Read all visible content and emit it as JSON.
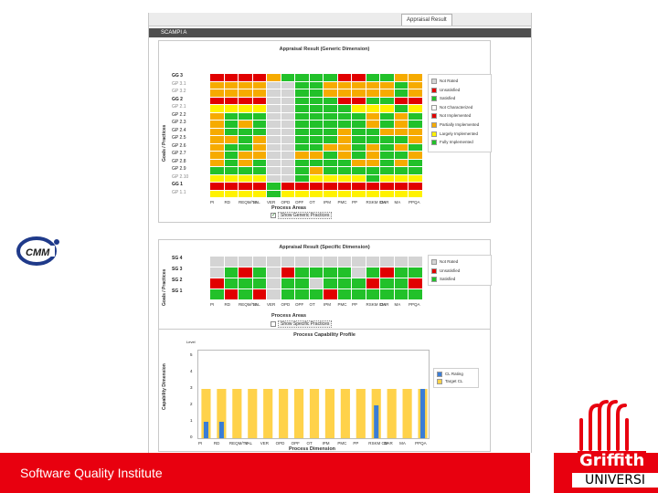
{
  "window": {
    "tab_label": "Appraisal Result",
    "title": "SCAMPI A"
  },
  "colors": {
    "red": "#e10000",
    "green": "#22c12a",
    "orange": "#f6ab00",
    "yellow": "#fff200",
    "grey": "#d4d4d4",
    "bar_blue": "#3a7dd6",
    "bar_gold": "#ffd24a",
    "brand_red": "#e8000f"
  },
  "generic_panel": {
    "title": "Appraisal Result (Generic Dimension)",
    "y_axis": "Goals / Practices",
    "x_title": "Process Areas",
    "checkbox_label": "Show Generic Practices",
    "checkbox_checked": true,
    "rows": [
      {
        "label": "GG 3",
        "style": "main"
      },
      {
        "label": "GP 3.1",
        "style": "grey"
      },
      {
        "label": "GP 3.2",
        "style": "grey"
      },
      {
        "label": "GG 2",
        "style": "main"
      },
      {
        "label": "GP 2.1",
        "style": "grey"
      },
      {
        "label": "GP 2.2",
        "style": "normal"
      },
      {
        "label": "GP 2.3",
        "style": "normal"
      },
      {
        "label": "GP 2.4",
        "style": "normal"
      },
      {
        "label": "GP 2.5",
        "style": "normal"
      },
      {
        "label": "GP 2.6",
        "style": "normal"
      },
      {
        "label": "GP 2.7",
        "style": "normal"
      },
      {
        "label": "GP 2.8",
        "style": "normal"
      },
      {
        "label": "GP 2.9",
        "style": "normal"
      },
      {
        "label": "GP 2.10",
        "style": "grey"
      },
      {
        "label": "GG 1",
        "style": "main"
      },
      {
        "label": "GP 1.1",
        "style": "grey"
      }
    ],
    "columns": [
      "PI",
      "RD",
      "REQM/TS",
      "VAL",
      "VER",
      "OPD",
      "OPF",
      "OT",
      "IPM",
      "PMC",
      "PP",
      "RSKM CM",
      "DAR",
      "MA",
      "PPQA"
    ],
    "grid": [
      "RRRROGGGGRRGGOO",
      "OOOOGGGGOOOOOGO",
      "OOOOGGGGOOOOOGO",
      "RRRRGGGGGRRGGRR",
      "YYYYGGGGGGYYYGY",
      "OGGGGGGGGGGOGOG",
      "OGOGGGGGGGGOGOG",
      "OGGGGGGGGOGGOOO",
      "OOGOGGGGGOGGGGO",
      "OGGOGGGGOOGOGOG",
      "OGOOGGOOGOGOGGO",
      "OGOGGGGGGGOOGOG",
      "GGGGGGGOGGGGGGG",
      "YYYYGGGYYYYGYYY",
      "RRRRGRRRRRRRRRR",
      "YYYYGYYYYYYYYYY"
    ],
    "grey_cols": [
      4,
      5
    ],
    "legend": [
      {
        "label": "Not Rated",
        "color": "#d4d4d4"
      },
      {
        "label": "Unsatisfied",
        "color": "#e10000"
      },
      {
        "label": "Satisfied",
        "color": "#22c12a"
      },
      {
        "label": "Not Characterized",
        "color": "#ffffff"
      },
      {
        "label": "Not Implemented",
        "color": "#e10000"
      },
      {
        "label": "Partially Implemented",
        "color": "#f6ab00"
      },
      {
        "label": "Largely Implemented",
        "color": "#fff200"
      },
      {
        "label": "Fully Implemented",
        "color": "#22c12a"
      }
    ]
  },
  "specific_panel": {
    "title": "Appraisal Result (Specific Dimension)",
    "y_axis": "Goals / Practices",
    "x_title": "Process Areas",
    "checkbox_label": "Show Specific Practices",
    "checkbox_checked": false,
    "rows": [
      {
        "label": "SG 4",
        "style": "main"
      },
      {
        "label": "SG 3",
        "style": "main"
      },
      {
        "label": "SG 2",
        "style": "main"
      },
      {
        "label": "SG 1",
        "style": "main"
      }
    ],
    "columns": [
      "PI",
      "RD",
      "REQM/TS",
      "VAL",
      "VER",
      "OPD",
      "OPF",
      "OT",
      "IPM",
      "PMC",
      "PP",
      "RSKM CM",
      "DAR",
      "MA",
      "PPQA"
    ],
    "grid": [
      "NNNNNNNNNNNNNNN",
      "NGRGNRGGGGNGRGG",
      "RGGGNGGNGGGRGGR",
      "GRGRNGGGRGGGGGG"
    ],
    "legend": [
      {
        "label": "Not Rated",
        "color": "#d4d4d4"
      },
      {
        "label": "Unsatisfied",
        "color": "#e10000"
      },
      {
        "label": "Satisfied",
        "color": "#22c12a"
      }
    ]
  },
  "chart_data": {
    "type": "bar",
    "title": "Process Capability Profile",
    "xlabel": "Process Dimension",
    "ylabel": "Capability Dimension",
    "y_axis_title": "Level",
    "ylim": [
      0,
      5
    ],
    "yticks": [
      "0",
      "1",
      "2",
      "3",
      "4",
      "5"
    ],
    "categories": [
      "PI",
      "RD",
      "REQM/TS",
      "VAL",
      "VER",
      "OPD",
      "OPF",
      "OT",
      "IPM",
      "PMC",
      "PP",
      "RSKM CM",
      "DAR",
      "MA",
      "PPQA"
    ],
    "series": [
      {
        "name": "CL Rating",
        "values": [
          1,
          1,
          0,
          0,
          0,
          0,
          0,
          0,
          0,
          0,
          0,
          2,
          0,
          0,
          3
        ]
      },
      {
        "name": "Target CL",
        "values": [
          3,
          3,
          3,
          3,
          3,
          3,
          3,
          3,
          3,
          3,
          3,
          3,
          3,
          3,
          3
        ]
      }
    ],
    "legend_position": "right",
    "grid": false
  },
  "footer": {
    "institute": "Software Quality Institute",
    "university_word": "Griffith",
    "university_sub": "UNIVERSI"
  },
  "logo": {
    "cmm_text": "CMM"
  }
}
